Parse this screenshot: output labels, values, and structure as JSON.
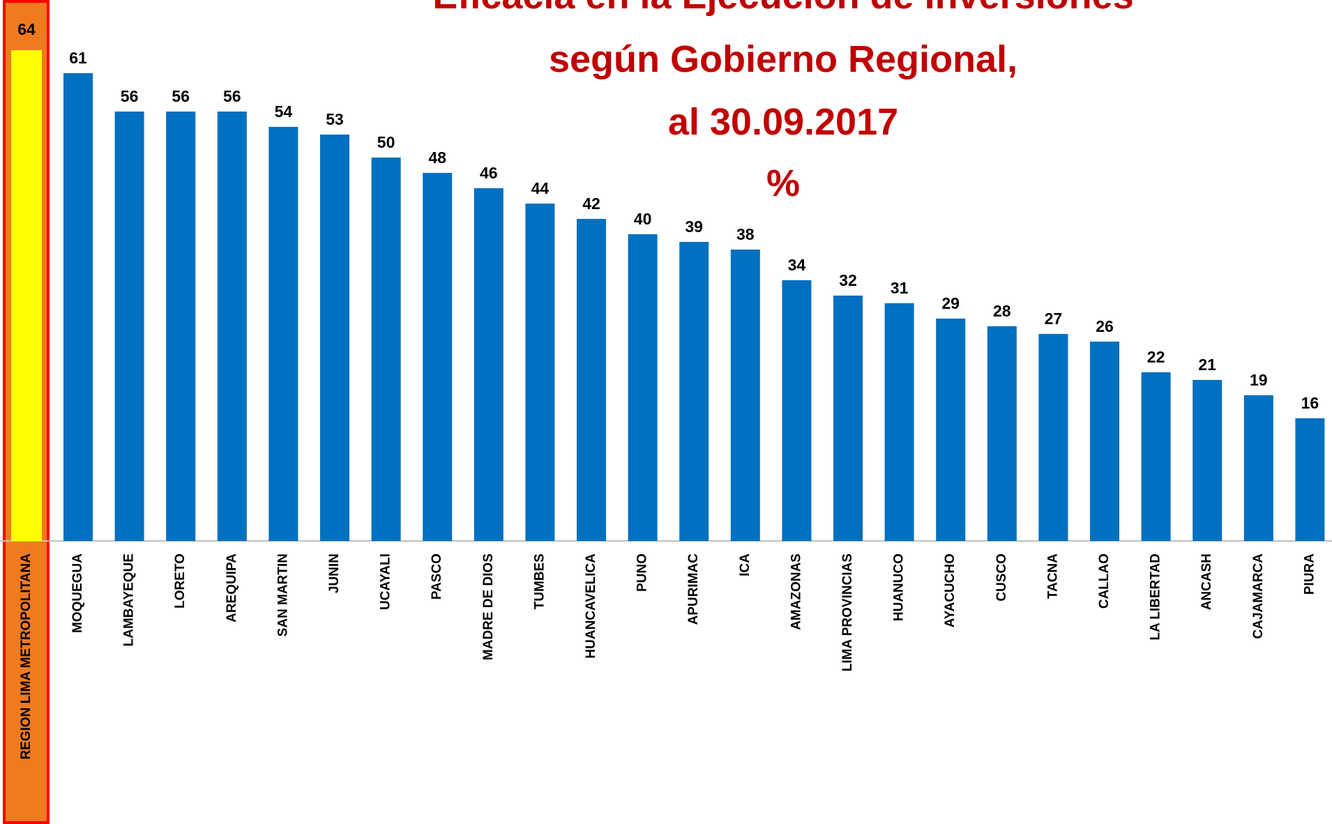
{
  "chart_data": {
    "type": "bar",
    "title": [
      "Eficacia en la Ejecución de Inversiones",
      "según Gobierno Regional,",
      "al 30.09.2017",
      "%"
    ],
    "categories": [
      "REGION LIMA METROPOLITANA",
      "MOQUEGUA",
      "LAMBAYEQUE",
      "LORETO",
      "AREQUIPA",
      "SAN MARTIN",
      "JUNIN",
      "UCAYALI",
      "PASCO",
      "MADRE DE DIOS",
      "TUMBES",
      "HUANCAVELICA",
      "PUNO",
      "APURIMAC",
      "ICA",
      "AMAZONAS",
      "LIMA PROVINCIAS",
      "HUANUCO",
      "AYACUCHO",
      "CUSCO",
      "TACNA",
      "CALLAO",
      "LA LIBERTAD",
      "ANCASH",
      "CAJAMARCA",
      "PIURA"
    ],
    "values": [
      64,
      61,
      56,
      56,
      56,
      54,
      53,
      50,
      48,
      46,
      44,
      42,
      40,
      39,
      38,
      34,
      32,
      31,
      29,
      28,
      27,
      26,
      22,
      21,
      19,
      16
    ],
    "colors": [
      "#ffff00",
      "#0070c0",
      "#0070c0",
      "#0070c0",
      "#0070c0",
      "#0070c0",
      "#0070c0",
      "#0070c0",
      "#0070c0",
      "#0070c0",
      "#0070c0",
      "#0070c0",
      "#0070c0",
      "#0070c0",
      "#0070c0",
      "#0070c0",
      "#0070c0",
      "#0070c0",
      "#0070c0",
      "#0070c0",
      "#0070c0",
      "#0070c0",
      "#0070c0",
      "#0070c0",
      "#0070c0",
      "#0070c0"
    ],
    "ylim": [
      0,
      70
    ]
  }
}
